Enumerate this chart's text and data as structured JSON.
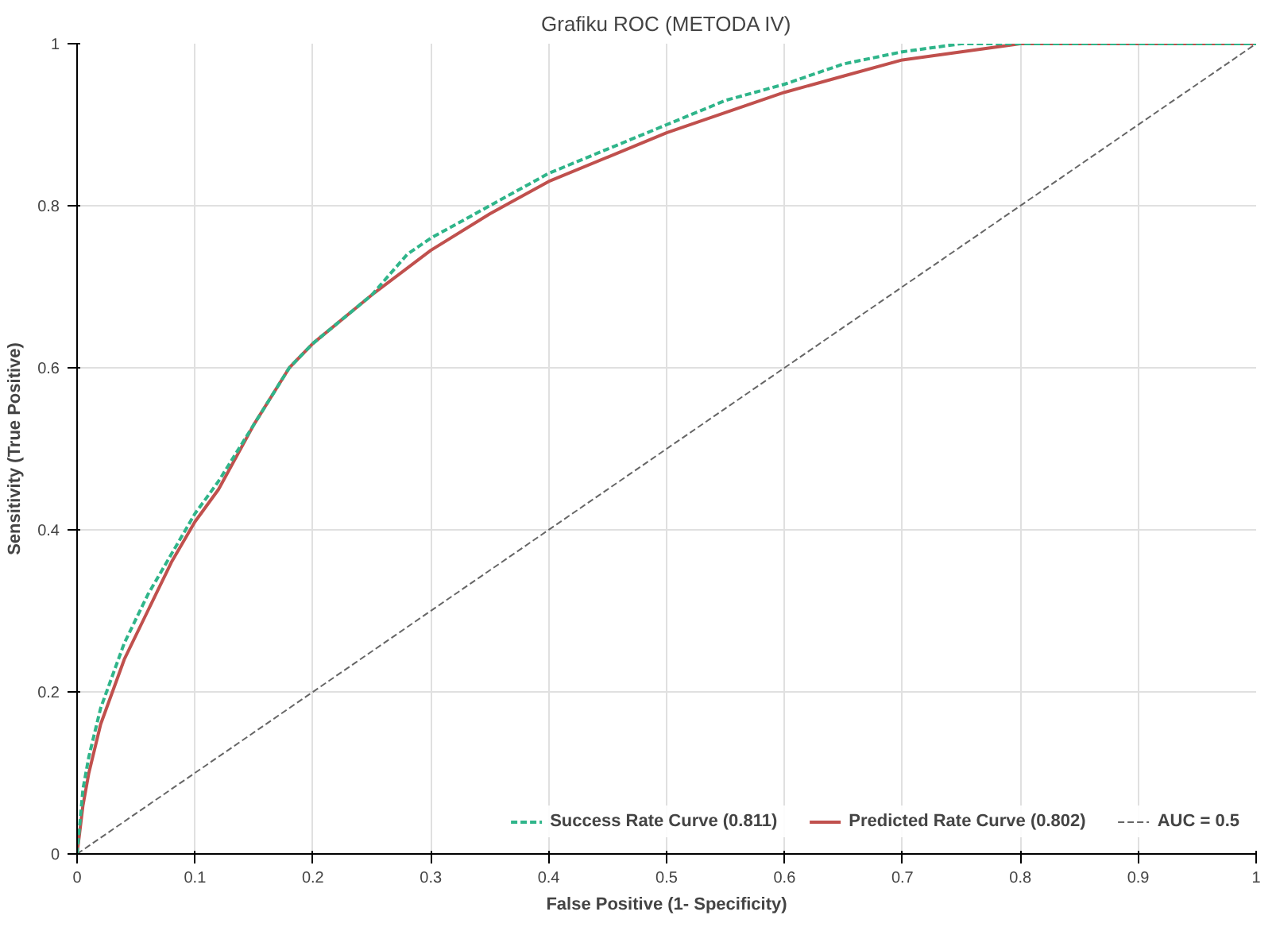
{
  "chart_data": {
    "type": "line",
    "title": "Grafiku ROC (METODA IV)",
    "xlabel": "False Positive (1- Specificity)",
    "ylabel": "Sensitivity (True Positive)",
    "xlim": [
      0,
      1
    ],
    "ylim": [
      0,
      1
    ],
    "xticks": [
      0,
      {
        "value": 0.1,
        "label": "0.1"
      },
      {
        "value": 0.2,
        "label": "0.2"
      },
      {
        "value": 0.3,
        "label": "0.3"
      },
      {
        "value": 0.4,
        "label": "0.4"
      },
      {
        "value": 0.5,
        "label": "0.5"
      },
      {
        "value": 0.6,
        "label": "0.6"
      },
      {
        "value": 0.7,
        "label": "0.7"
      },
      {
        "value": 0.8,
        "label": "0.8"
      },
      {
        "value": 0.9,
        "label": "0.9"
      },
      1
    ],
    "yticks": [
      0,
      {
        "value": 0.2,
        "label": "0.2"
      },
      {
        "value": 0.4,
        "label": "0.4"
      },
      {
        "value": 0.6,
        "label": "0.6"
      },
      {
        "value": 0.8,
        "label": "0.8"
      },
      1
    ],
    "grid": true,
    "legend": "bottom right",
    "marker": "none",
    "series": [
      {
        "name": "Success Rate Curve (0.811)",
        "color": "#2fb58a",
        "line_style": "dashed",
        "x": [
          0,
          0.005,
          0.01,
          0.02,
          0.04,
          0.06,
          0.08,
          0.1,
          0.12,
          0.15,
          0.18,
          0.2,
          0.25,
          0.28,
          0.3,
          0.35,
          0.4,
          0.45,
          0.5,
          0.55,
          0.6,
          0.65,
          0.7,
          0.75,
          0.8,
          1
        ],
        "values": [
          0,
          0.08,
          0.12,
          0.18,
          0.26,
          0.32,
          0.37,
          0.42,
          0.46,
          0.53,
          0.6,
          0.63,
          0.69,
          0.74,
          0.76,
          0.8,
          0.84,
          0.87,
          0.9,
          0.93,
          0.95,
          0.975,
          0.99,
          1,
          1,
          1
        ]
      },
      {
        "name": "Predicted Rate Curve (0.802)",
        "color": "#c0504d",
        "line_style": "solid",
        "x": [
          0,
          0.005,
          0.01,
          0.02,
          0.04,
          0.06,
          0.08,
          0.1,
          0.12,
          0.15,
          0.18,
          0.2,
          0.25,
          0.3,
          0.35,
          0.4,
          0.45,
          0.5,
          0.55,
          0.6,
          0.65,
          0.7,
          0.75,
          0.8,
          1
        ],
        "values": [
          0,
          0.06,
          0.1,
          0.16,
          0.24,
          0.3,
          0.36,
          0.41,
          0.45,
          0.53,
          0.6,
          0.63,
          0.69,
          0.745,
          0.79,
          0.83,
          0.86,
          0.89,
          0.915,
          0.94,
          0.96,
          0.98,
          0.99,
          1,
          1
        ]
      },
      {
        "name": "AUC = 0.5",
        "color": "#666666",
        "line_style": "dashed",
        "x": [
          0,
          1
        ],
        "values": [
          0,
          1
        ]
      }
    ]
  }
}
